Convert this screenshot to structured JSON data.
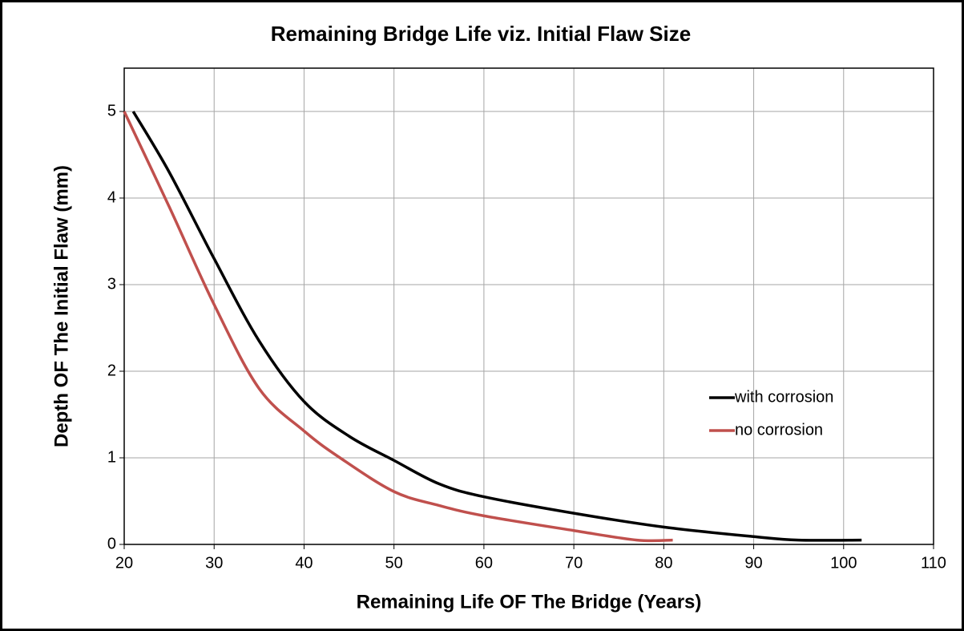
{
  "chart_data": {
    "type": "line",
    "title": "Remaining Bridge Life viz. Initial Flaw Size",
    "x_label": "Remaining Life OF The Bridge (Years)",
    "y_label": "Depth OF The Initial Flaw (mm)",
    "xlim": [
      20,
      110
    ],
    "xticks": [
      20,
      30,
      40,
      50,
      60,
      70,
      80,
      90,
      100,
      110
    ],
    "ylim": [
      0,
      5.5
    ],
    "yticks": [
      0,
      1,
      2,
      3,
      4,
      5
    ],
    "grid": true,
    "legend": "right",
    "series": [
      {
        "name": "with corrosion",
        "color": "#000000",
        "x": [
          21,
          25,
          30,
          35,
          40,
          45,
          50,
          55,
          60,
          70,
          80,
          90,
          95,
          102
        ],
        "values": [
          5,
          4.3,
          3.3,
          2.35,
          1.65,
          1.25,
          0.97,
          0.7,
          0.55,
          0.36,
          0.2,
          0.09,
          0.05,
          0.05
        ]
      },
      {
        "name": "no corrosion",
        "color": "#c0504d",
        "x": [
          20,
          25,
          30,
          35,
          40,
          44,
          50,
          55,
          60,
          70,
          77,
          81
        ],
        "values": [
          5,
          3.9,
          2.77,
          1.8,
          1.31,
          1.0,
          0.61,
          0.45,
          0.33,
          0.16,
          0.05,
          0.05
        ]
      }
    ]
  }
}
